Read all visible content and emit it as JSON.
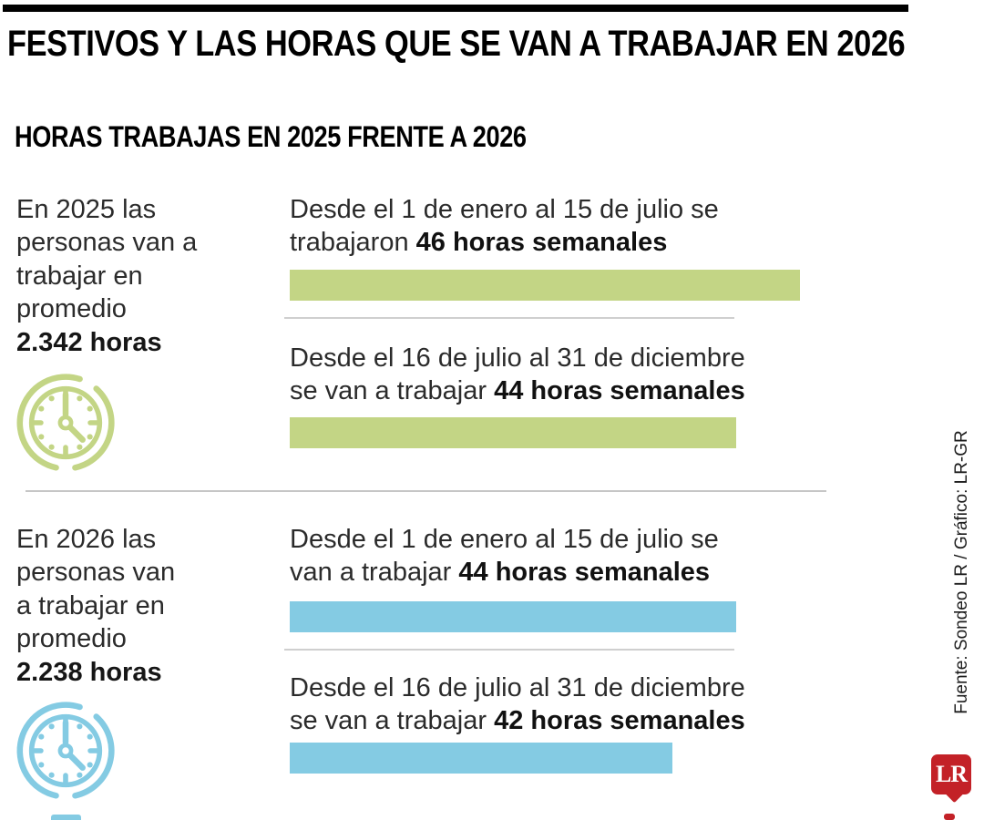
{
  "header": {
    "title": "FESTIVOS Y LAS HORAS QUE SE VAN A TRABAJAR EN 2026",
    "subtitle": "HORAS TRABAJAS EN 2025 FRENTE A 2026"
  },
  "sections": [
    {
      "year": "2025",
      "color": "#c3d585",
      "intro_lines": [
        "En 2025 las",
        "personas van a",
        "trabajar en",
        "promedio"
      ],
      "intro_bold": "2.342 horas",
      "rows": [
        {
          "line1": "Desde el 1 de enero al 15 de julio se",
          "line2_regular": "trabajaron ",
          "line2_bold": "46 horas semanales",
          "value": 46
        },
        {
          "line1": "Desde el 16 de julio al 31 de diciembre",
          "line2_regular": "se van a trabajar ",
          "line2_bold": "44 horas semanales",
          "value": 44
        }
      ]
    },
    {
      "year": "2026",
      "color": "#84cbe3",
      "intro_lines": [
        "En 2026 las",
        "personas van",
        "a trabajar en",
        "promedio"
      ],
      "intro_bold": "2.238 horas",
      "rows": [
        {
          "line1": "Desde el 1 de enero al 15 de julio se",
          "line2_regular": "van a trabajar ",
          "line2_bold": "44 horas semanales",
          "value": 44
        },
        {
          "line1": "Desde el 16 de julio al 31 de diciembre",
          "line2_regular": "se van a trabajar ",
          "line2_bold": "42 horas semanales",
          "value": 42
        }
      ]
    }
  ],
  "source": "Fuente: Sondeo LR / Gráfico: LR-GR",
  "logo": {
    "text": "LR",
    "color": "#c32127"
  },
  "chart_data": {
    "type": "bar",
    "title": "FESTIVOS Y LAS HORAS QUE SE VAN A TRABAJAR EN 2026",
    "subtitle": "HORAS TRABAJAS EN 2025 FRENTE A 2026",
    "unit": "horas semanales",
    "orientation": "horizontal",
    "value_axis_baseline": 30,
    "series": [
      {
        "name": "2025",
        "average_annual_hours": 2342,
        "color": "#c3d585",
        "points": [
          {
            "label": "Desde el 1 de enero al 15 de julio se trabajaron",
            "value": 46
          },
          {
            "label": "Desde el 16 de julio al 31 de diciembre se van a trabajar",
            "value": 44
          }
        ]
      },
      {
        "name": "2026",
        "average_annual_hours": 2238,
        "color": "#84cbe3",
        "points": [
          {
            "label": "Desde el 1 de enero al 15 de julio se van a trabajar",
            "value": 44
          },
          {
            "label": "Desde el 16 de julio al 31 de diciembre se van a trabajar",
            "value": 42
          }
        ]
      }
    ],
    "legend": false,
    "grid": false
  }
}
